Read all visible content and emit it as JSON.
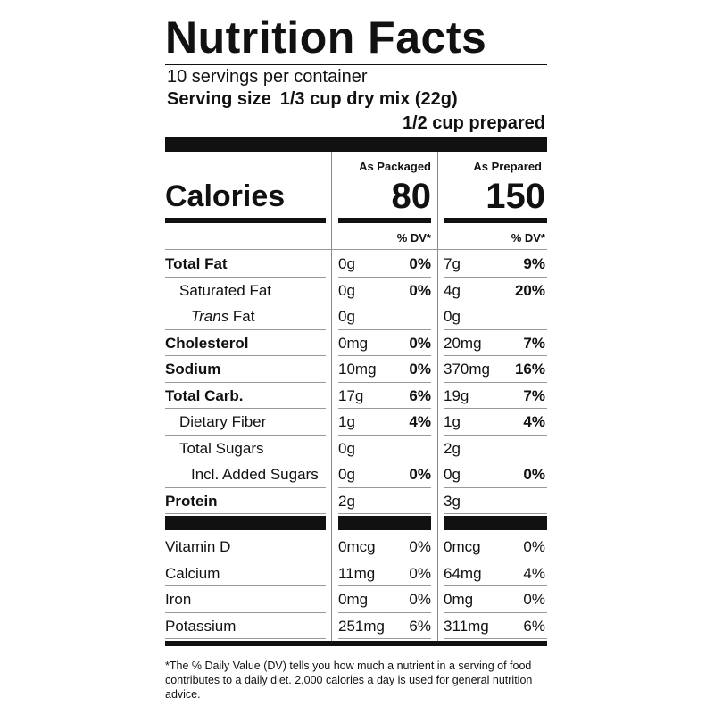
{
  "label": {
    "title": "Nutrition Facts",
    "servings_per_container": "10 servings per container",
    "serving_size_label": "Serving size",
    "serving_size_value": "1/3 cup dry mix (22g)",
    "serving_size_prepared": "1/2 cup prepared",
    "columns": {
      "packaged": "As Packaged",
      "prepared": "As Prepared"
    },
    "calories": {
      "label": "Calories",
      "packaged": "80",
      "prepared": "150"
    },
    "dv_header": "% DV*",
    "nutrients": [
      {
        "name": "Total Fat",
        "style": "bold",
        "pkg_amt": "0g",
        "pkg_dv": "0%",
        "prep_amt": "7g",
        "prep_dv": "9%"
      },
      {
        "name": "Saturated Fat",
        "style": "ind1",
        "pkg_amt": "0g",
        "pkg_dv": "0%",
        "prep_amt": "4g",
        "prep_dv": "20%"
      },
      {
        "name_italic": "Trans",
        "name": " Fat",
        "style": "ind2",
        "pkg_amt": "0g",
        "pkg_dv": "",
        "prep_amt": "0g",
        "prep_dv": ""
      },
      {
        "name": "Cholesterol",
        "style": "bold",
        "pkg_amt": "0mg",
        "pkg_dv": "0%",
        "prep_amt": "20mg",
        "prep_dv": "7%"
      },
      {
        "name": "Sodium",
        "style": "bold",
        "pkg_amt": "10mg",
        "pkg_dv": "0%",
        "prep_amt": "370mg",
        "prep_dv": "16%"
      },
      {
        "name": "Total Carb.",
        "style": "bold",
        "pkg_amt": "17g",
        "pkg_dv": "6%",
        "prep_amt": "19g",
        "prep_dv": "7%"
      },
      {
        "name": "Dietary Fiber",
        "style": "ind1",
        "pkg_amt": "1g",
        "pkg_dv": "4%",
        "prep_amt": "1g",
        "prep_dv": "4%"
      },
      {
        "name": "Total Sugars",
        "style": "ind1",
        "pkg_amt": "0g",
        "pkg_dv": "",
        "prep_amt": "2g",
        "prep_dv": ""
      },
      {
        "name": "Incl. Added Sugars",
        "style": "ind2",
        "pkg_amt": "0g",
        "pkg_dv": "0%",
        "prep_amt": "0g",
        "prep_dv": "0%"
      },
      {
        "name": "Protein",
        "style": "bold",
        "pkg_amt": "2g",
        "pkg_dv": "",
        "prep_amt": "3g",
        "prep_dv": ""
      }
    ],
    "vitamins": [
      {
        "name": "Vitamin D",
        "pkg_amt": "0mcg",
        "pkg_dv": "0%",
        "prep_amt": "0mcg",
        "prep_dv": "0%"
      },
      {
        "name": "Calcium",
        "pkg_amt": "11mg",
        "pkg_dv": "0%",
        "prep_amt": "64mg",
        "prep_dv": "4%"
      },
      {
        "name": "Iron",
        "pkg_amt": "0mg",
        "pkg_dv": "0%",
        "prep_amt": "0mg",
        "prep_dv": "0%"
      },
      {
        "name": "Potassium",
        "pkg_amt": "251mg",
        "pkg_dv": "6%",
        "prep_amt": "311mg",
        "prep_dv": "6%"
      }
    ],
    "footnote": "*The % Daily Value (DV) tells you how much a nutrient in a serving of food contributes to a daily diet. 2,000 calories a day is used for general nutrition advice."
  }
}
